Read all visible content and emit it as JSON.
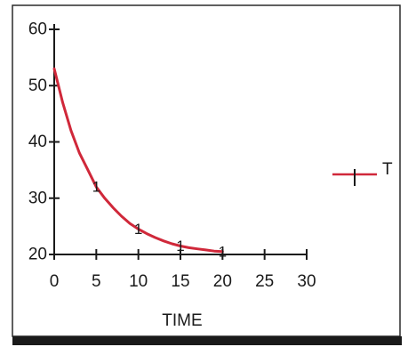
{
  "chart_data": {
    "type": "line",
    "title": "",
    "xlabel": "TIME",
    "ylabel": "",
    "xlim": [
      0,
      30
    ],
    "ylim": [
      20,
      60
    ],
    "xticks": [
      0,
      5,
      10,
      15,
      20,
      25,
      30
    ],
    "yticks": [
      20,
      30,
      40,
      50,
      60
    ],
    "grid": false,
    "legend": "right",
    "series": [
      {
        "name": "T",
        "color": "#d0283a",
        "marker": "1",
        "x": [
          0,
          1,
          2,
          3,
          4,
          5,
          6,
          7,
          8,
          9,
          10,
          11,
          12,
          13,
          14,
          15,
          16,
          17,
          18,
          19,
          20
        ],
        "y": [
          53,
          47,
          42,
          38,
          35,
          32,
          30,
          28.3,
          26.8,
          25.5,
          24.5,
          23.7,
          23,
          22.4,
          21.9,
          21.5,
          21.2,
          21,
          20.8,
          20.6,
          20.5
        ],
        "marker_x": [
          5,
          10,
          15,
          20
        ],
        "marker_y": [
          32,
          24.5,
          21.5,
          20.5
        ]
      }
    ]
  }
}
